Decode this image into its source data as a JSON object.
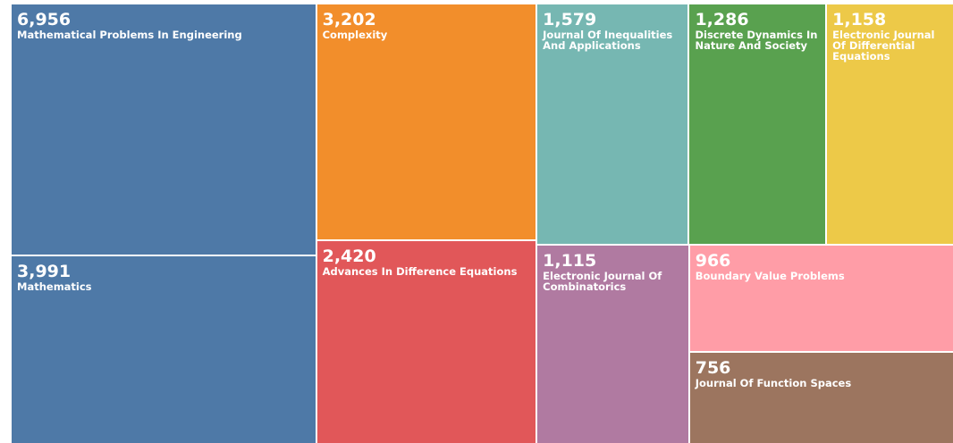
{
  "chart_data": {
    "type": "treemap",
    "categories": [
      "Mathematical Problems In Engineering",
      "Mathematics",
      "Complexity",
      "Advances In Difference Equations",
      "Journal Of Inequalities And Applications",
      "Discrete Dynamics In Nature And Society",
      "Electronic Journal Of Differential Equations",
      "Electronic Journal Of Combinatorics",
      "Boundary Value Problems",
      "Journal Of Function Spaces"
    ],
    "values": [
      6956,
      3991,
      3202,
      2420,
      1579,
      1286,
      1158,
      1115,
      966,
      756
    ],
    "value_labels": [
      "6,956",
      "3,991",
      "3,202",
      "2,420",
      "1,579",
      "1,286",
      "1,158",
      "1,115",
      "966",
      "756"
    ],
    "colors": [
      "#4e79a7",
      "#4e79a7",
      "#f28e2b",
      "#e15759",
      "#76b7b2",
      "#59a14f",
      "#edc948",
      "#b07aa1",
      "#ff9da7",
      "#9c755f"
    ]
  }
}
